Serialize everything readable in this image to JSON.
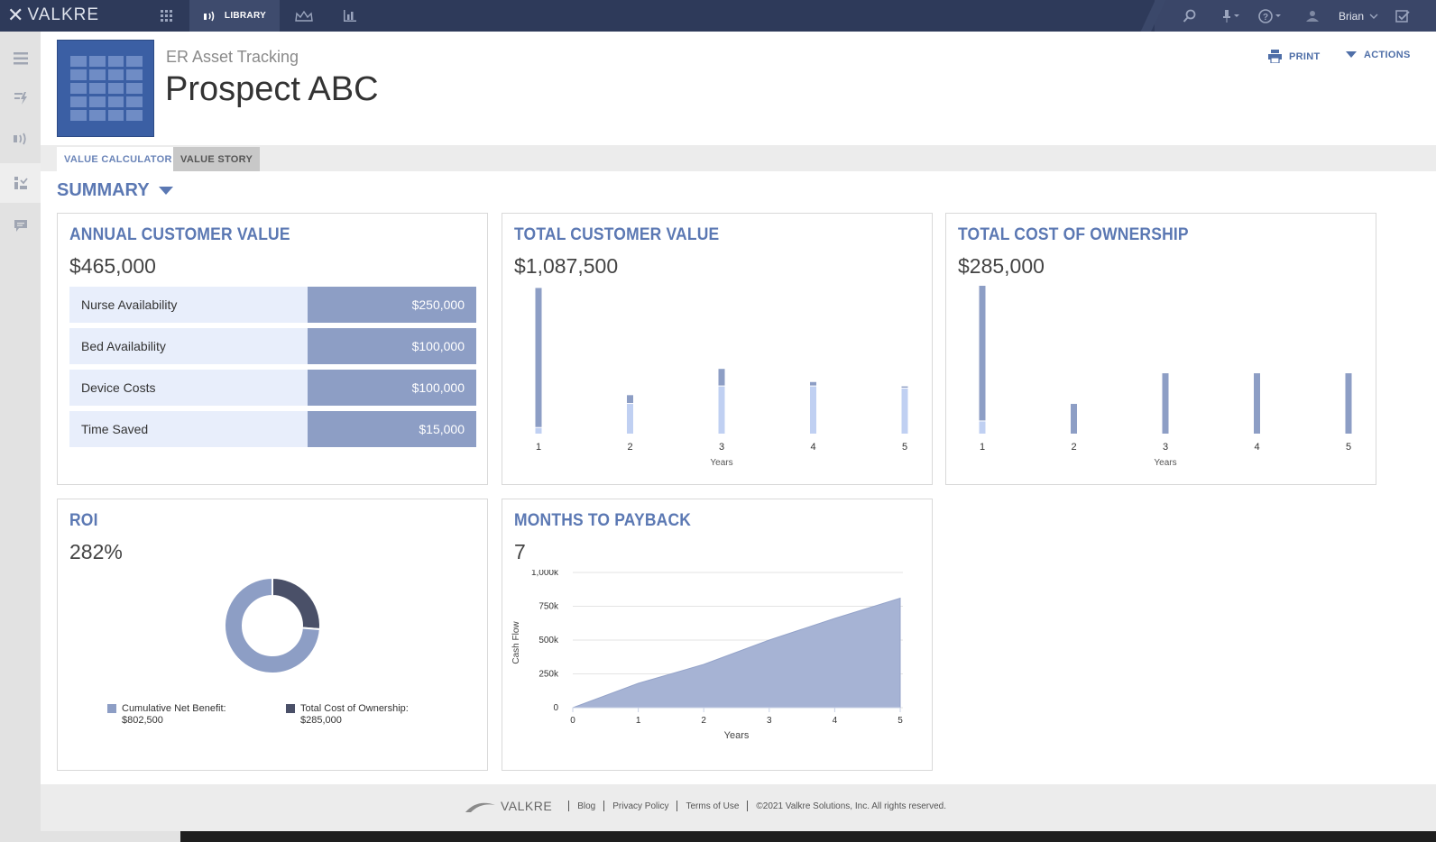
{
  "topbar": {
    "brand": "VALKRE",
    "nav": [
      {
        "icon": "grid-icon"
      },
      {
        "icon": "broadcast-icon",
        "label": "LIBRARY",
        "active": true
      },
      {
        "icon": "crown-icon"
      },
      {
        "icon": "bar-chart-icon"
      }
    ],
    "user": "Brian"
  },
  "header": {
    "subtitle": "ER Asset Tracking",
    "title": "Prospect ABC",
    "print_label": "PRINT",
    "actions_label": "ACTIONS"
  },
  "tabs": [
    {
      "label": "VALUE CALCULATOR",
      "active": true
    },
    {
      "label": "VALUE STORY",
      "active": false
    }
  ],
  "summary_label": "SUMMARY",
  "cards": {
    "acv": {
      "title": "ANNUAL CUSTOMER VALUE",
      "value": "$465,000",
      "rows": [
        {
          "label": "Nurse Availability",
          "value": "$250,000"
        },
        {
          "label": "Bed Availability",
          "value": "$100,000"
        },
        {
          "label": "Device Costs",
          "value": "$100,000"
        },
        {
          "label": "Time Saved",
          "value": "$15,000"
        }
      ]
    },
    "tcv": {
      "title": "TOTAL CUSTOMER VALUE",
      "value": "$1,087,500"
    },
    "tco": {
      "title": "TOTAL COST OF OWNERSHIP",
      "value": "$285,000"
    },
    "roi": {
      "title": "ROI",
      "value": "282%",
      "legend": [
        {
          "label": "Cumulative Net Benefit:",
          "value": "$802,500",
          "color": "#8d9ec5"
        },
        {
          "label": "Total Cost of Ownership:",
          "value": "$285,000",
          "color": "#4a5068"
        }
      ]
    },
    "payback": {
      "title": "MONTHS TO PAYBACK",
      "value": "7"
    }
  },
  "chart_data": [
    {
      "type": "bar",
      "chart": "tcv",
      "categories": [
        "1",
        "2",
        "3",
        "4",
        "5"
      ],
      "xlabel": "Years",
      "series": [
        {
          "values": [
            320000,
            20000,
            40000,
            10000,
            5000
          ]
        },
        {
          "values": [
            15000,
            70000,
            110000,
            110000,
            105000
          ]
        }
      ],
      "ylim": [
        0,
        340000
      ]
    },
    {
      "type": "bar",
      "chart": "tco",
      "categories": [
        "1",
        "2",
        "3",
        "4",
        "5"
      ],
      "xlabel": "Years",
      "series": [
        {
          "values": [
            155000,
            35000,
            70000,
            70000,
            70000
          ]
        },
        {
          "values": [
            15000,
            0,
            0,
            0,
            0
          ]
        }
      ],
      "ylim": [
        0,
        170000
      ]
    },
    {
      "type": "pie",
      "chart": "roi",
      "labels": [
        "Cumulative Net Benefit",
        "Total Cost of Ownership"
      ],
      "values": [
        802500,
        285000
      ],
      "colors": [
        "#8d9ec5",
        "#4a5068"
      ]
    },
    {
      "type": "area",
      "chart": "payback",
      "x": [
        0,
        1,
        2,
        3,
        4,
        5
      ],
      "y": [
        0,
        180000,
        320000,
        500000,
        660000,
        810000
      ],
      "xlabel": "Years",
      "ylabel": "Cash Flow",
      "xticks": [
        "0",
        "1",
        "2",
        "3",
        "4",
        "5"
      ],
      "yticks": [
        0,
        250000,
        500000,
        750000,
        1000000
      ],
      "ytick_labels": [
        "0",
        "250k",
        "500k",
        "750k",
        "1,000k"
      ],
      "ylim": [
        0,
        1000000
      ]
    }
  ],
  "footer": {
    "brand": "VALKRE",
    "links": [
      "Blog",
      "Privacy Policy",
      "Terms of Use"
    ],
    "copyright": "©2021 Valkre Solutions, Inc. All rights reserved."
  }
}
